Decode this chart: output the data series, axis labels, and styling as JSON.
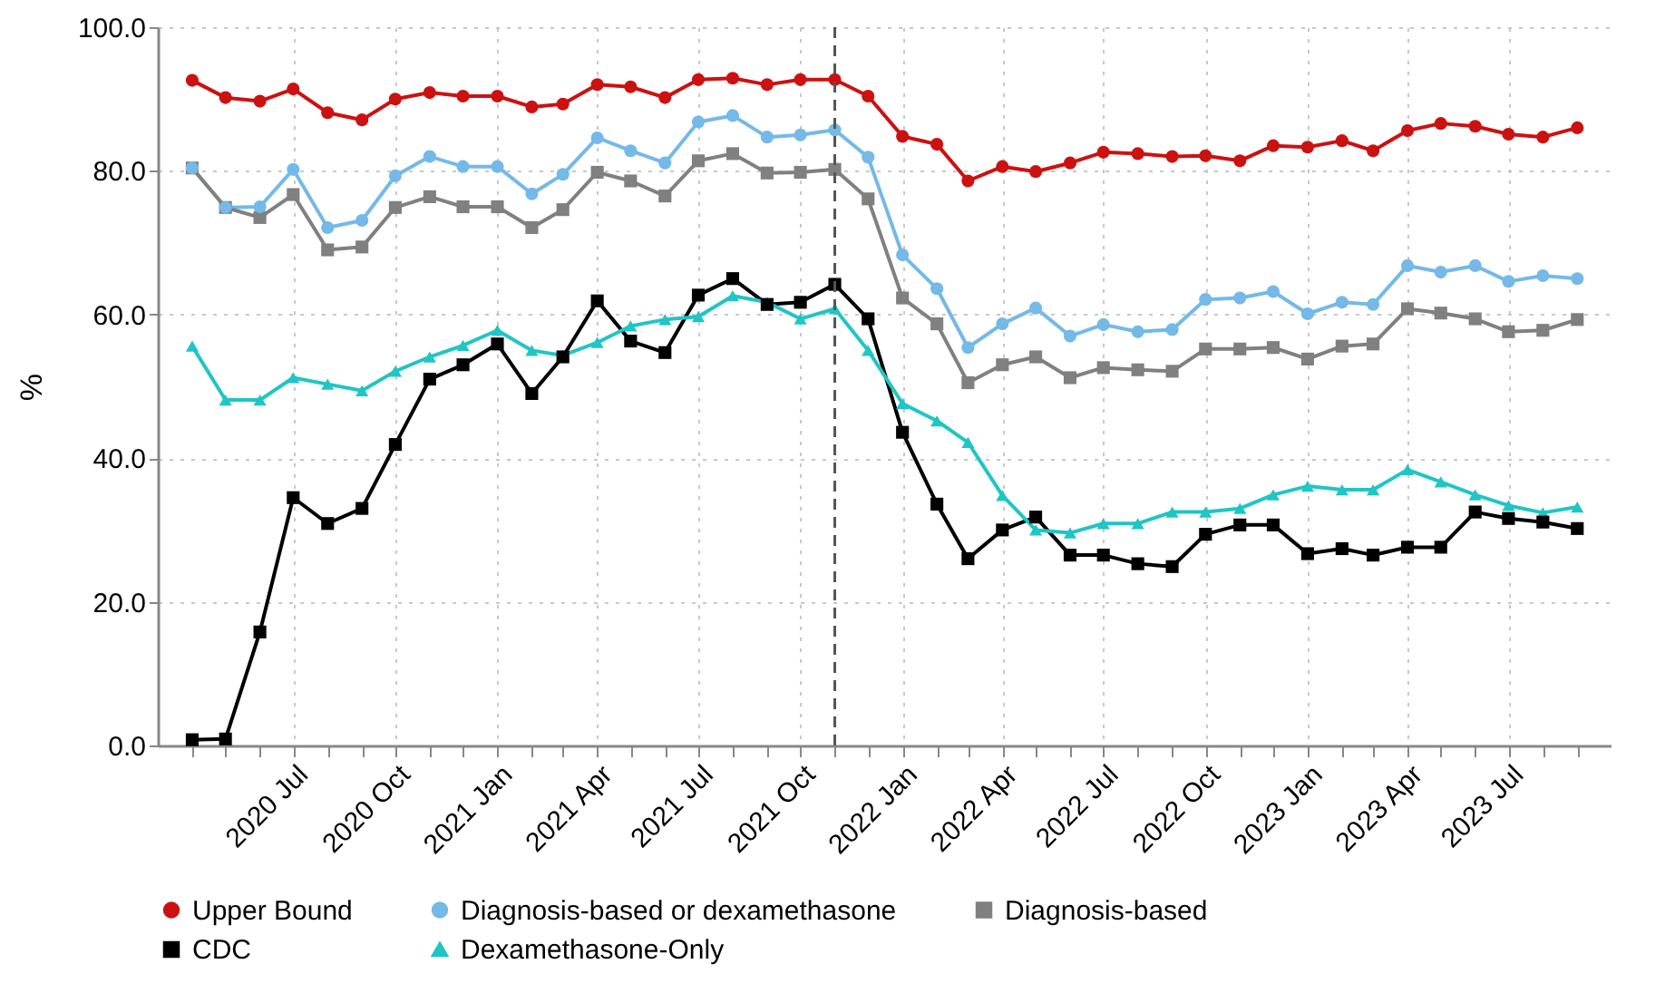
{
  "chart_data": {
    "type": "line",
    "ylabel": "%",
    "x": [
      "2020-04",
      "2020-05",
      "2020-06",
      "2020-07",
      "2020-08",
      "2020-09",
      "2020-10",
      "2020-11",
      "2020-12",
      "2021-01",
      "2021-02",
      "2021-03",
      "2021-04",
      "2021-05",
      "2021-06",
      "2021-07",
      "2021-08",
      "2021-09",
      "2021-10",
      "2021-11",
      "2021-12",
      "2022-01",
      "2022-02",
      "2022-03",
      "2022-04",
      "2022-05",
      "2022-06",
      "2022-07",
      "2022-08",
      "2022-09",
      "2022-10",
      "2022-11",
      "2022-12",
      "2023-01",
      "2023-02",
      "2023-03",
      "2023-04",
      "2023-05",
      "2023-06",
      "2023-07",
      "2023-08",
      "2023-09"
    ],
    "series": [
      {
        "name": "Upper Bound",
        "color": "#cc1111",
        "marker": "circle",
        "values": [
          92.6,
          90.2,
          89.7,
          91.4,
          88.1,
          87.1,
          90.0,
          90.9,
          90.4,
          90.4,
          88.9,
          89.3,
          92.0,
          91.7,
          90.2,
          92.7,
          92.9,
          92.0,
          92.7,
          92.7,
          90.4,
          84.8,
          83.7,
          78.6,
          80.6,
          79.9,
          81.1,
          82.6,
          82.4,
          82.0,
          82.1,
          81.4,
          83.5,
          83.3,
          84.2,
          82.8,
          85.6,
          86.6,
          86.2,
          85.1,
          84.7,
          86.0
        ]
      },
      {
        "name": "Diagnosis-based or dexamethasone",
        "color": "#74b9e7",
        "marker": "circle",
        "values": [
          80.4,
          74.9,
          75.0,
          80.2,
          72.1,
          73.1,
          79.3,
          82.0,
          80.6,
          80.6,
          76.8,
          79.5,
          84.6,
          82.8,
          81.1,
          86.8,
          87.7,
          84.7,
          85.0,
          85.7,
          81.9,
          68.3,
          63.6,
          55.4,
          58.7,
          60.9,
          57.0,
          58.6,
          57.6,
          57.9,
          62.1,
          62.3,
          63.2,
          60.1,
          61.7,
          61.4,
          66.8,
          65.9,
          66.8,
          64.6,
          65.4,
          65.0
        ]
      },
      {
        "name": "Diagnosis-based",
        "color": "#808080",
        "marker": "square",
        "values": [
          80.4,
          74.9,
          73.5,
          76.7,
          69.0,
          69.4,
          74.9,
          76.4,
          75.0,
          75.0,
          72.1,
          74.6,
          79.8,
          78.6,
          76.5,
          81.4,
          82.4,
          79.7,
          79.8,
          80.2,
          76.1,
          62.3,
          58.7,
          50.5,
          53.0,
          54.1,
          51.2,
          52.6,
          52.3,
          52.1,
          55.2,
          55.2,
          55.4,
          53.8,
          55.6,
          55.9,
          60.8,
          60.2,
          59.4,
          57.6,
          57.8,
          59.3
        ]
      },
      {
        "name": "CDC",
        "color": "#000000",
        "marker": "square",
        "values": [
          0.8,
          0.9,
          15.8,
          34.5,
          30.9,
          33.0,
          41.9,
          51.0,
          53.0,
          55.9,
          49.0,
          54.1,
          61.9,
          56.3,
          54.7,
          62.7,
          65.0,
          61.4,
          61.7,
          64.2,
          59.4,
          43.6,
          33.6,
          26.0,
          30.0,
          31.8,
          26.5,
          26.5,
          25.3,
          24.9,
          29.4,
          30.7,
          30.7,
          26.7,
          27.4,
          26.5,
          27.6,
          27.6,
          32.5,
          31.6,
          31.1,
          30.2
        ]
      },
      {
        "name": "Dexamethasone-Only",
        "color": "#20c5c5",
        "marker": "triangle",
        "values": [
          55.6,
          48.1,
          48.1,
          51.2,
          50.3,
          49.4,
          52.1,
          54.1,
          55.7,
          57.8,
          55.0,
          54.3,
          56.1,
          58.4,
          59.3,
          59.7,
          62.6,
          61.7,
          59.4,
          60.8,
          55.0,
          47.6,
          45.2,
          42.2,
          34.8,
          30.0,
          29.6,
          30.9,
          30.9,
          32.5,
          32.5,
          33.0,
          34.9,
          36.1,
          35.6,
          35.6,
          38.4,
          36.7,
          34.9,
          33.4,
          32.4,
          33.2
        ]
      }
    ],
    "xlim": [
      "2020-03",
      "2023-10"
    ],
    "xticks": [
      {
        "value": "2020-04",
        "label": null
      },
      {
        "value": "2020-05",
        "label": null
      },
      {
        "value": "2020-06",
        "label": null
      },
      {
        "value": "2020-07",
        "label": "2020 Jul"
      },
      {
        "value": "2020-08",
        "label": null
      },
      {
        "value": "2020-09",
        "label": null
      },
      {
        "value": "2020-10",
        "label": "2020 Oct"
      },
      {
        "value": "2020-11",
        "label": null
      },
      {
        "value": "2020-12",
        "label": null
      },
      {
        "value": "2021-01",
        "label": "2021 Jan"
      },
      {
        "value": "2021-02",
        "label": null
      },
      {
        "value": "2021-03",
        "label": null
      },
      {
        "value": "2021-04",
        "label": "2021 Apr"
      },
      {
        "value": "2021-05",
        "label": null
      },
      {
        "value": "2021-06",
        "label": null
      },
      {
        "value": "2021-07",
        "label": "2021 Jul"
      },
      {
        "value": "2021-08",
        "label": null
      },
      {
        "value": "2021-09",
        "label": null
      },
      {
        "value": "2021-10",
        "label": "2021 Oct"
      },
      {
        "value": "2021-11",
        "label": null
      },
      {
        "value": "2021-12",
        "label": null
      },
      {
        "value": "2022-01",
        "label": "2022 Jan"
      },
      {
        "value": "2022-02",
        "label": null
      },
      {
        "value": "2022-03",
        "label": null
      },
      {
        "value": "2022-04",
        "label": "2022 Apr"
      },
      {
        "value": "2022-05",
        "label": null
      },
      {
        "value": "2022-06",
        "label": null
      },
      {
        "value": "2022-07",
        "label": "2022 Jul"
      },
      {
        "value": "2022-08",
        "label": null
      },
      {
        "value": "2022-09",
        "label": null
      },
      {
        "value": "2022-10",
        "label": "2022 Oct"
      },
      {
        "value": "2022-11",
        "label": null
      },
      {
        "value": "2022-12",
        "label": null
      },
      {
        "value": "2023-01",
        "label": "2023 Jan"
      },
      {
        "value": "2023-02",
        "label": null
      },
      {
        "value": "2023-03",
        "label": null
      },
      {
        "value": "2023-04",
        "label": "2023 Apr"
      },
      {
        "value": "2023-05",
        "label": null
      },
      {
        "value": "2023-06",
        "label": null
      },
      {
        "value": "2023-07",
        "label": "2023 Jul"
      },
      {
        "value": "2023-08",
        "label": null
      },
      {
        "value": "2023-09",
        "label": null
      }
    ],
    "ylim": [
      0,
      100
    ],
    "yticks": [
      {
        "value": 0,
        "label": "0.0"
      },
      {
        "value": 20,
        "label": "20.0"
      },
      {
        "value": 40,
        "label": "40.0"
      },
      {
        "value": 60,
        "label": "60.0"
      },
      {
        "value": 80,
        "label": "80.0"
      },
      {
        "value": 100,
        "label": "100.0"
      }
    ],
    "ref_lines": [
      {
        "axis": "x",
        "value": "2021-11",
        "color": "#555555",
        "line_style": "dashed"
      }
    ],
    "grid": true,
    "legend": "bottom",
    "line_style": "solid"
  }
}
